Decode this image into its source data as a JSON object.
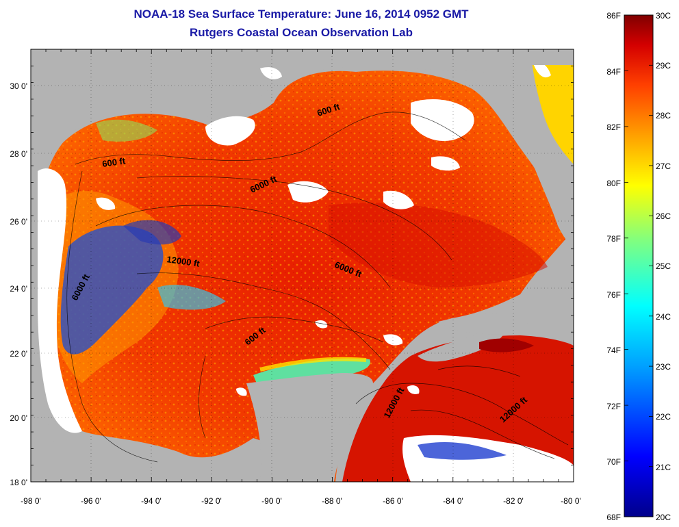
{
  "title": "NOAA-18 Sea Surface Temperature:  June 16, 2014 0952 GMT",
  "subtitle": "Rutgers Coastal Ocean Observation Lab",
  "colors": {
    "land": "#b3b3b3",
    "cloud": "#ffffff",
    "frame": "#000000",
    "title": "#1a1aa6"
  },
  "axes": {
    "x_labels": [
      "-98 0'",
      "-96 0'",
      "-94 0'",
      "-92 0'",
      "-90 0'",
      "-88 0'",
      "-86 0'",
      "-84 0'",
      "-82 0'",
      "-80 0'"
    ],
    "y_labels": [
      "30 0'",
      "28 0'",
      "26 0'",
      "24 0'",
      "22 0'",
      "20 0'",
      "18 0'"
    ]
  },
  "contour_labels": [
    "600 ft",
    "600 ft",
    "6000 ft",
    "12000 ft",
    "6000 ft",
    "6000 ft",
    "600 ft",
    "12000 ft",
    "12000 ft"
  ],
  "colorbar": {
    "fahrenheit": [
      "86F",
      "84F",
      "82F",
      "80F",
      "78F",
      "76F",
      "74F",
      "72F",
      "70F",
      "68F"
    ],
    "celsius": [
      "30C",
      "29C",
      "28C",
      "27C",
      "26C",
      "25C",
      "24C",
      "23C",
      "22C",
      "21C",
      "20C"
    ]
  }
}
